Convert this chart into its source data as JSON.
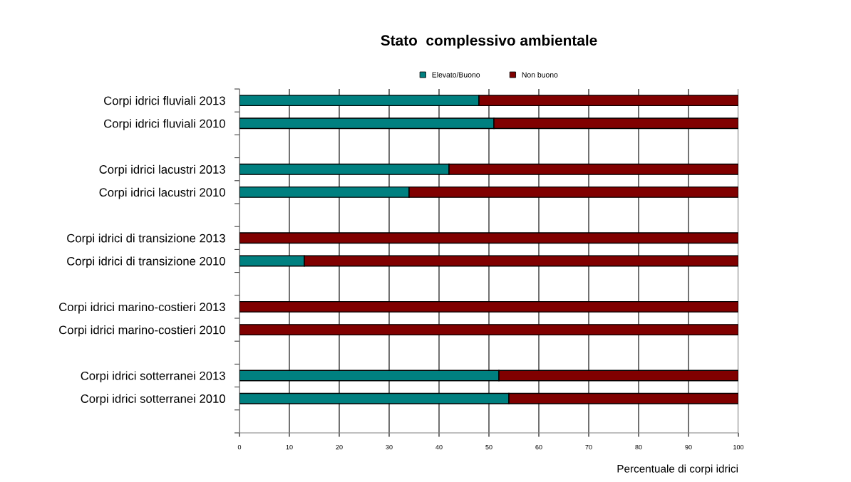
{
  "chart_data": {
    "type": "bar",
    "orientation": "horizontal",
    "stacked": true,
    "title": "Stato  complessivo ambientale",
    "xlabel": "Percentuale di corpi idrici",
    "categories": [
      "Corpi idrici fluviali 2013",
      "Corpi idrici fluviali 2010",
      null,
      "Corpi idrici lacustri 2013",
      "Corpi idrici lacustri 2010",
      null,
      "Corpi idrici di transizione 2013",
      "Corpi idrici di transizione 2010",
      null,
      "Corpi idrici marino-costieri 2013",
      "Corpi idrici marino-costieri 2010",
      null,
      "Corpi idrici sotterranei 2013",
      "Corpi idrici sotterranei 2010",
      null
    ],
    "series": [
      {
        "name": "Elevato/Buono",
        "color": "#008080",
        "values": [
          48,
          51,
          null,
          42,
          34,
          null,
          0,
          13,
          null,
          0,
          0,
          null,
          52,
          54,
          null
        ]
      },
      {
        "name": "Non buono",
        "color": "#800000",
        "values": [
          52,
          49,
          null,
          58,
          66,
          null,
          100,
          87,
          null,
          100,
          100,
          null,
          48,
          46,
          null
        ]
      }
    ],
    "xlim": [
      0,
      100
    ],
    "xticks": [
      0,
      10,
      20,
      30,
      40,
      50,
      60,
      70,
      80,
      90,
      100
    ],
    "grid": "x",
    "legend": "top"
  }
}
